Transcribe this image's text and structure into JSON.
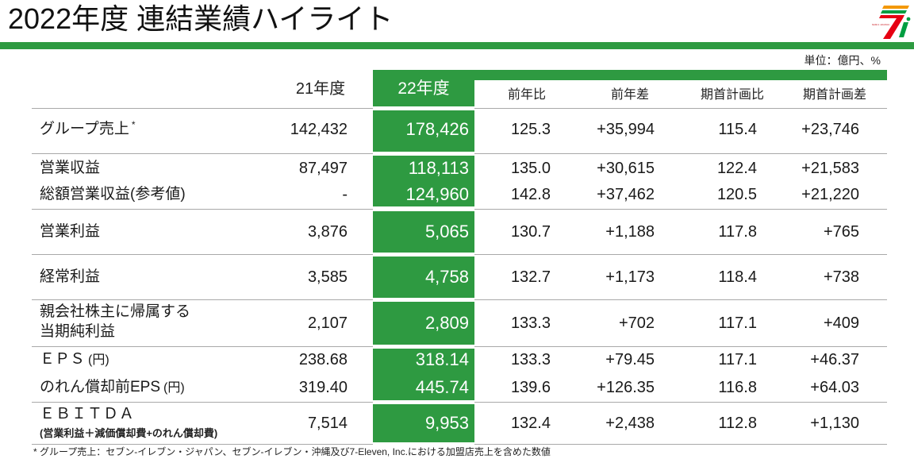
{
  "slide": {
    "title": "2022年度 連結業績ハイライト",
    "unit": "単位：億円、%"
  },
  "logo": {
    "text": "SEVEN & i HOLDINGS",
    "colors": {
      "orange": "#f39800",
      "red": "#e60012",
      "green": "#009e41"
    }
  },
  "table": {
    "headers": {
      "fy21": "21年度",
      "fy22": "22年度",
      "yoy_ratio": "前年比",
      "yoy_diff": "前年差",
      "plan_ratio": "期首計画比",
      "plan_diff": "期首計画差"
    },
    "rows": [
      {
        "label": "グループ売上",
        "note_mark": "*",
        "fy21": "142,432",
        "fy22": "178,426",
        "yoy_ratio": "125.3",
        "yoy_diff": "+35,994",
        "plan_ratio": "115.4",
        "plan_diff": "+23,746"
      },
      {
        "label": "営業収益",
        "fy21": "87,497",
        "fy22": "118,113",
        "yoy_ratio": "135.0",
        "yoy_diff": "+30,615",
        "plan_ratio": "122.4",
        "plan_diff": "+21,583"
      },
      {
        "label": "総額営業収益(参考値)",
        "fy21": "-",
        "fy22": "124,960",
        "yoy_ratio": "142.8",
        "yoy_diff": "+37,462",
        "plan_ratio": "120.5",
        "plan_diff": "+21,220"
      },
      {
        "label": "営業利益",
        "fy21": "3,876",
        "fy22": "5,065",
        "yoy_ratio": "130.7",
        "yoy_diff": "+1,188",
        "plan_ratio": "117.8",
        "plan_diff": "+765"
      },
      {
        "label": "経常利益",
        "fy21": "3,585",
        "fy22": "4,758",
        "yoy_ratio": "132.7",
        "yoy_diff": "+1,173",
        "plan_ratio": "118.4",
        "plan_diff": "+738"
      },
      {
        "label": "親会社株主に帰属する",
        "label_line2": "当期純利益",
        "fy21": "2,107",
        "fy22": "2,809",
        "yoy_ratio": "133.3",
        "yoy_diff": "+702",
        "plan_ratio": "117.1",
        "plan_diff": "+409"
      },
      {
        "label": "ＥＰＳ",
        "label_suffix": "(円)",
        "fy21": "238.68",
        "fy22": "318.14",
        "yoy_ratio": "133.3",
        "yoy_diff": "+79.45",
        "plan_ratio": "117.1",
        "plan_diff": "+46.37"
      },
      {
        "label": "のれん償却前EPS",
        "label_suffix": "(円)",
        "fy21": "319.40",
        "fy22": "445.74",
        "yoy_ratio": "139.6",
        "yoy_diff": "+126.35",
        "plan_ratio": "116.8",
        "plan_diff": "+64.03"
      },
      {
        "label": "ＥＢＩＴＤＡ",
        "sublabel": "(営業利益＋減価償却費+のれん償却費)",
        "fy21": "7,514",
        "fy22": "9,953",
        "yoy_ratio": "132.4",
        "yoy_diff": "+2,438",
        "plan_ratio": "112.8",
        "plan_diff": "+1,130"
      }
    ]
  },
  "footnote": "* グループ売上：セブン-イレブン・ジャパン、セブン-イレブン・沖縄及び7-Eleven, Inc.における加盟店売上を含めた数値",
  "colors": {
    "accent_green": "#2e9a41",
    "text": "#1a1a1a",
    "rule_gray": "#a9a9a9"
  }
}
